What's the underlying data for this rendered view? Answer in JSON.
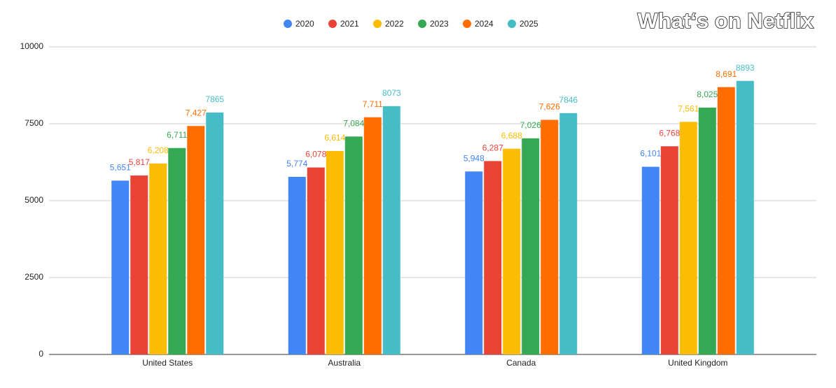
{
  "chart_data": {
    "type": "bar",
    "title": "What‘s on Netflix",
    "categories": [
      "United States",
      "Australia",
      "Canada",
      "United Kingdom"
    ],
    "series": [
      {
        "name": "2020",
        "color": "#4285f4",
        "values": [
          5651,
          5774,
          5948,
          6101
        ],
        "value_labels": [
          "5,651",
          "5,774",
          "5,948",
          "6,101"
        ]
      },
      {
        "name": "2021",
        "color": "#ea4335",
        "values": [
          5817,
          6078,
          6287,
          6768
        ],
        "value_labels": [
          "5,817",
          "6,078",
          "6,287",
          "6,768"
        ]
      },
      {
        "name": "2022",
        "color": "#fbbc04",
        "values": [
          6208,
          6614,
          6688,
          7561
        ],
        "value_labels": [
          "6,208",
          "6,614",
          "6,688",
          "7,561"
        ]
      },
      {
        "name": "2023",
        "color": "#34a853",
        "values": [
          6711,
          7084,
          7026,
          8025
        ],
        "value_labels": [
          "6,711",
          "7,084",
          "7,026",
          "8,025"
        ]
      },
      {
        "name": "2024",
        "color": "#ff6d01",
        "values": [
          7427,
          7711,
          7626,
          8691
        ],
        "value_labels": [
          "7,427",
          "7,711",
          "7,626",
          "8,691"
        ]
      },
      {
        "name": "2025",
        "color": "#46bdc6",
        "values": [
          7865,
          8073,
          7846,
          8893
        ]
      }
    ],
    "ylim": [
      0,
      10000
    ],
    "yticks": [
      0,
      2500,
      5000,
      7500,
      10000
    ],
    "grid": true,
    "legend": "top"
  }
}
